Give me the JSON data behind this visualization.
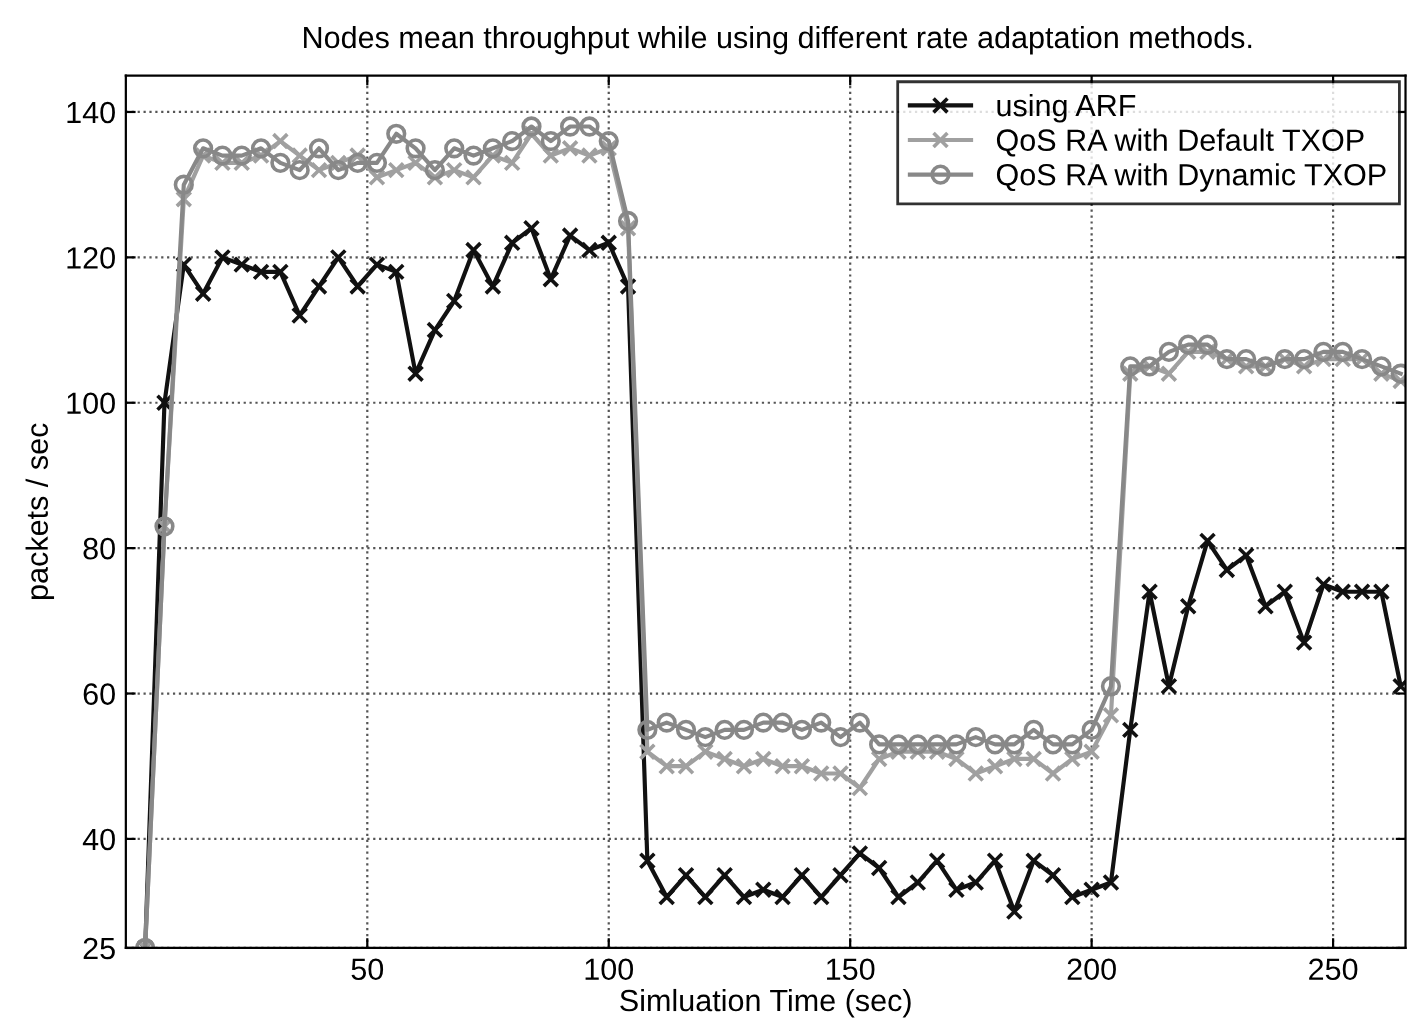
{
  "chart_data": {
    "type": "line",
    "title": "Nodes mean throughput while using different rate adaptation methods.",
    "xlabel": "Simluation Time (sec)",
    "ylabel": "packets / sec",
    "x": [
      4,
      8,
      12,
      16,
      20,
      24,
      28,
      32,
      36,
      40,
      44,
      48,
      52,
      56,
      60,
      64,
      68,
      72,
      76,
      80,
      84,
      88,
      92,
      96,
      100,
      104,
      108,
      112,
      116,
      120,
      124,
      128,
      132,
      136,
      140,
      144,
      148,
      152,
      156,
      160,
      164,
      168,
      172,
      176,
      180,
      184,
      188,
      192,
      196,
      200,
      204,
      208,
      212,
      216,
      220,
      224,
      228,
      232,
      236,
      240,
      244,
      248,
      252,
      256,
      260,
      264
    ],
    "series": [
      {
        "name": "using ARF",
        "color": "#111111",
        "marker": "cross",
        "values": [
          25,
          100,
          119,
          115,
          120,
          119,
          118,
          118,
          112,
          116,
          120,
          116,
          119,
          118,
          104,
          110,
          114,
          121,
          116,
          122,
          124,
          117,
          123,
          121,
          122,
          116,
          37,
          32,
          35,
          32,
          35,
          32,
          33,
          32,
          35,
          32,
          35,
          38,
          36,
          32,
          34,
          37,
          33,
          34,
          37,
          30,
          37,
          35,
          32,
          33,
          34,
          55,
          74,
          61,
          72,
          81,
          77,
          79,
          72,
          74,
          67,
          75,
          74,
          74,
          74,
          61
        ]
      },
      {
        "name": "QoS RA with Default TXOP",
        "color": "#a0a0a0",
        "marker": "cross",
        "values": [
          25,
          83,
          128,
          134,
          133,
          133,
          134,
          136,
          134,
          132,
          133,
          134,
          131,
          132,
          133,
          131,
          132,
          131,
          134,
          133,
          137,
          134,
          135,
          134,
          135,
          124,
          52,
          50,
          50,
          52,
          51,
          50,
          51,
          50,
          50,
          49,
          49,
          47,
          51,
          52,
          52,
          52,
          51,
          49,
          50,
          51,
          51,
          49,
          51,
          52,
          57,
          104,
          105,
          104,
          107,
          107,
          106,
          105,
          105,
          106,
          105,
          106,
          106,
          106,
          104,
          103
        ]
      },
      {
        "name": "QoS RA with Dynamic TXOP",
        "color": "#888888",
        "marker": "circle",
        "values": [
          25,
          83,
          130,
          135,
          134,
          134,
          135,
          133,
          132,
          135,
          132,
          133,
          133,
          137,
          135,
          132,
          135,
          134,
          135,
          136,
          138,
          136,
          138,
          138,
          136,
          125,
          55,
          56,
          55,
          54,
          55,
          55,
          56,
          56,
          55,
          56,
          54,
          56,
          53,
          53,
          53,
          53,
          53,
          54,
          53,
          53,
          55,
          53,
          53,
          55,
          61,
          105,
          105,
          107,
          108,
          108,
          106,
          106,
          105,
          106,
          106,
          107,
          107,
          106,
          105,
          104
        ]
      }
    ],
    "xlim": [
      0,
      265
    ],
    "ylim": [
      25,
      145
    ],
    "xticks": [
      50,
      100,
      150,
      200,
      250
    ],
    "yticks": [
      25,
      40,
      60,
      80,
      100,
      120,
      140
    ],
    "grid": true,
    "legend": "top right",
    "line_style": "solid"
  }
}
